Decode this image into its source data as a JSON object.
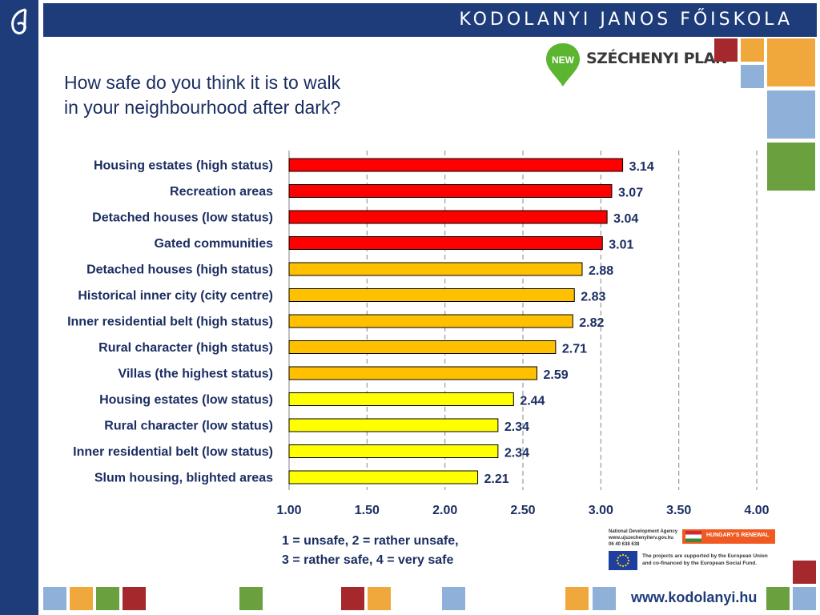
{
  "header": {
    "school_name": "KODOLANYI JANOS FŐISKOLA"
  },
  "logo": {
    "plan_badge": "NEW",
    "plan_name": "SZÉCHENYI PLAN"
  },
  "slide": {
    "title": "How safe do you think it is to walk\nin your neighbourhood after dark?"
  },
  "chart_data": {
    "type": "bar",
    "orientation": "horizontal",
    "categories": [
      "Housing estates (high status)",
      "Recreation areas",
      "Detached houses (low status)",
      "Gated communities",
      "Detached houses (high status)",
      "Historical inner city (city centre)",
      "Inner residential belt (high status)",
      "Rural character (high status)",
      "Villas (the highest status)",
      "Housing estates (low status)",
      "Rural character (low status)",
      "Inner residential belt (low status)",
      "Slum housing, blighted areas"
    ],
    "values": [
      3.14,
      3.07,
      3.04,
      3.01,
      2.88,
      2.83,
      2.82,
      2.71,
      2.59,
      2.44,
      2.34,
      2.34,
      2.21
    ],
    "value_labels": [
      "3.14",
      "3.07",
      "3.04",
      "3.01",
      "2.88",
      "2.83",
      "2.82",
      "2.71",
      "2.59",
      "2.44",
      "2.34",
      "2.34",
      "2.21"
    ],
    "bar_colors": [
      "#ff0000",
      "#ff0000",
      "#ff0000",
      "#ff0000",
      "#ffc000",
      "#ffc000",
      "#ffc000",
      "#ffc000",
      "#ffc000",
      "#ffff00",
      "#ffff00",
      "#ffff00",
      "#ffff00"
    ],
    "xlim": [
      1.0,
      4.0
    ],
    "xticks": [
      1.0,
      1.5,
      2.0,
      2.5,
      3.0,
      3.5,
      4.0
    ],
    "xtick_labels": [
      "1.00",
      "1.50",
      "2.00",
      "2.50",
      "3.00",
      "3.50",
      "4.00"
    ],
    "grid": "vertical dashed",
    "note": "1 = unsafe, 2 = rather unsafe,\n3 = rather safe, 4 = very safe"
  },
  "footer": {
    "agency_text": "National Development Agency\nwww.ujszechenyiterv.gov.hu\n06 40 638 638",
    "renewal_text": "HUNGARY'S RENEWAL",
    "eu_text": "The projects are supported by the European Union\nand co-financed by the European Social Fund.",
    "url": "www.kodolanyi.hu"
  },
  "colors": {
    "brand_blue": "#1e3b7a",
    "text_blue": "#1c2e62",
    "red": "#a4282c",
    "orange": "#f0a83c",
    "light_blue": "#8fb0d8",
    "green": "#6ba03e"
  }
}
